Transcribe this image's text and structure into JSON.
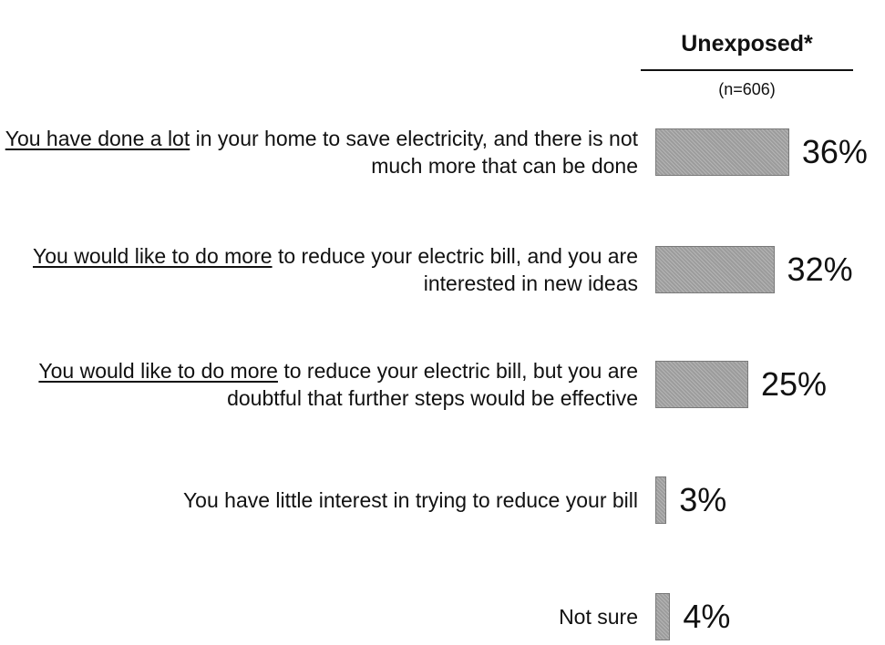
{
  "chart_data": {
    "type": "bar",
    "orientation": "horizontal",
    "series_name": "Unexposed*",
    "subtitle": "(n=606)",
    "categories": [
      [
        "You have done a lot",
        " in your home to save electricity, and there is not much more that can be done"
      ],
      [
        "You would like to do more",
        " to reduce your electric bill, and you are interested in new ideas"
      ],
      [
        "You would like to do more",
        " to reduce your electric bill, but you are doubtful that further steps would be effective"
      ],
      [
        "You have little interest in trying to reduce your bill"
      ],
      [
        "Not sure"
      ]
    ],
    "values": [
      36,
      32,
      25,
      3,
      4
    ],
    "value_labels": [
      "36%",
      "32%",
      "25%",
      "3%",
      "4%"
    ],
    "color": "#9c9c9c"
  }
}
